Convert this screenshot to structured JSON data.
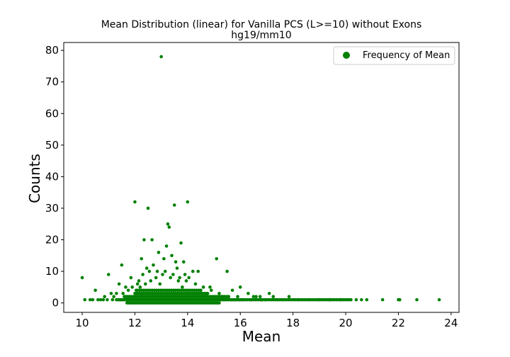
{
  "chart_data": {
    "type": "scatter",
    "title": "Mean Distribution (linear) for Vanilla PCS (L>=10) without Exons",
    "subtitle": "hg19/mm10",
    "xlabel": "Mean",
    "ylabel": "Counts",
    "xlim": [
      9.3,
      24.3
    ],
    "ylim": [
      -3.0,
      82.5
    ],
    "xticks": [
      10,
      12,
      14,
      16,
      18,
      20,
      22,
      24
    ],
    "yticks": [
      0,
      10,
      20,
      30,
      40,
      50,
      60,
      70,
      80
    ],
    "grid": false,
    "legend_position": "top-right",
    "series": [
      {
        "name": "Frequency of Mean",
        "color": "#008000",
        "points": [
          [
            13.0,
            78
          ],
          [
            12.0,
            32
          ],
          [
            14.0,
            32
          ],
          [
            12.5,
            30
          ],
          [
            13.5,
            31
          ],
          [
            13.25,
            25
          ],
          [
            13.3,
            24
          ],
          [
            12.35,
            20
          ],
          [
            12.65,
            20
          ],
          [
            13.75,
            19
          ],
          [
            13.2,
            18
          ],
          [
            12.9,
            16
          ],
          [
            12.25,
            14
          ],
          [
            13.1,
            14
          ],
          [
            13.4,
            15
          ],
          [
            15.1,
            14
          ],
          [
            13.55,
            13
          ],
          [
            13.85,
            13
          ],
          [
            11.5,
            12
          ],
          [
            12.45,
            11
          ],
          [
            12.7,
            12
          ],
          [
            12.85,
            10
          ],
          [
            13.15,
            10
          ],
          [
            13.6,
            11
          ],
          [
            14.2,
            10
          ],
          [
            14.4,
            10
          ],
          [
            15.5,
            10
          ],
          [
            10.0,
            8
          ],
          [
            11.0,
            9
          ],
          [
            11.85,
            8
          ],
          [
            12.3,
            9
          ],
          [
            12.55,
            10
          ],
          [
            13.05,
            9
          ],
          [
            13.45,
            9
          ],
          [
            13.9,
            9
          ],
          [
            12.15,
            7
          ],
          [
            12.8,
            8
          ],
          [
            13.35,
            8
          ],
          [
            13.7,
            8
          ],
          [
            14.05,
            8
          ],
          [
            11.4,
            6
          ],
          [
            12.1,
            6
          ],
          [
            12.6,
            7
          ],
          [
            12.95,
            6
          ],
          [
            13.65,
            7
          ],
          [
            13.95,
            7
          ],
          [
            14.3,
            6
          ],
          [
            11.65,
            5
          ],
          [
            11.9,
            5
          ],
          [
            12.2,
            5
          ],
          [
            12.4,
            6
          ],
          [
            13.8,
            5
          ],
          [
            14.6,
            5
          ],
          [
            14.85,
            5
          ],
          [
            16.0,
            5
          ],
          [
            10.5,
            4
          ],
          [
            11.75,
            4
          ],
          [
            12.05,
            4
          ],
          [
            14.5,
            4
          ],
          [
            14.9,
            4
          ],
          [
            15.7,
            4
          ],
          [
            11.1,
            3
          ],
          [
            11.3,
            3
          ],
          [
            11.55,
            3
          ],
          [
            14.7,
            3
          ],
          [
            15.2,
            3
          ],
          [
            16.3,
            3
          ],
          [
            17.1,
            3
          ],
          [
            10.85,
            2
          ],
          [
            11.2,
            2
          ],
          [
            11.6,
            2
          ],
          [
            15.3,
            2
          ],
          [
            15.9,
            2
          ],
          [
            16.5,
            2
          ],
          [
            16.6,
            2
          ],
          [
            16.75,
            2
          ],
          [
            17.25,
            2
          ],
          [
            17.85,
            2
          ],
          [
            10.1,
            1
          ],
          [
            10.3,
            1
          ],
          [
            10.4,
            1
          ],
          [
            10.6,
            1
          ],
          [
            10.7,
            1
          ],
          [
            10.8,
            1
          ],
          [
            10.95,
            1
          ],
          [
            11.15,
            1
          ],
          [
            11.45,
            1
          ],
          [
            11.7,
            1
          ],
          [
            16.1,
            1
          ],
          [
            16.4,
            1
          ],
          [
            16.8,
            1
          ],
          [
            16.95,
            1
          ],
          [
            17.4,
            1
          ],
          [
            17.6,
            1
          ],
          [
            18.2,
            1
          ],
          [
            18.6,
            1
          ],
          [
            19.0,
            1
          ],
          [
            19.4,
            1
          ],
          [
            19.8,
            1
          ],
          [
            20.4,
            1
          ],
          [
            20.6,
            1
          ],
          [
            20.8,
            1
          ],
          [
            21.4,
            1
          ],
          [
            22.0,
            1
          ],
          [
            22.05,
            1
          ],
          [
            22.7,
            1
          ],
          [
            23.55,
            1
          ]
        ]
      }
    ]
  }
}
